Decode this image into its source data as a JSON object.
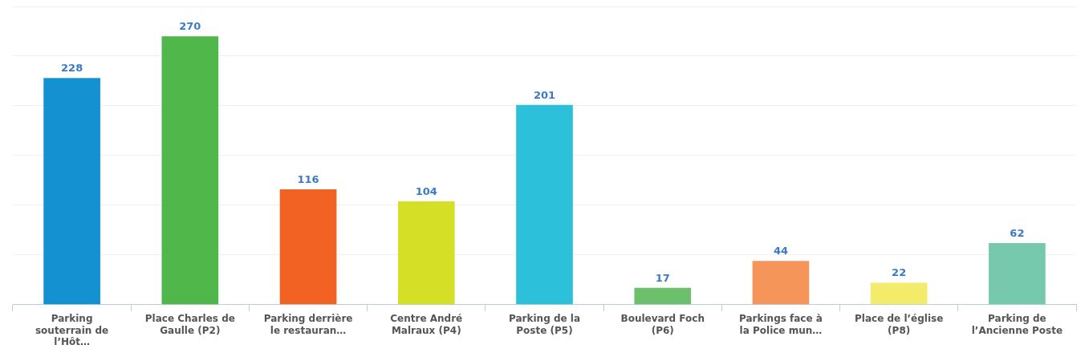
{
  "chart_data": {
    "type": "bar",
    "categories": [
      "Parking\nsouterrain de\nl’Hôt…",
      "Place Charles de\nGaulle (P2)",
      "Parking derrière\nle restauran…",
      "Centre André\nMalraux (P4)",
      "Parking de la\nPoste (P5)",
      "Boulevard Foch\n(P6)",
      "Parkings face à\nla Police mun…",
      "Place de l’église\n(P8)",
      "Parking de\nl’Ancienne Poste"
    ],
    "values": [
      228,
      270,
      116,
      104,
      201,
      17,
      44,
      22,
      62
    ],
    "colors": [
      "#1491d0",
      "#50b84a",
      "#f26222",
      "#d4df26",
      "#2cc0da",
      "#6cc06c",
      "#f6955a",
      "#f3ec6a",
      "#77c9ae"
    ],
    "ylim": [
      0,
      300
    ],
    "yticks": [
      {
        "value": 0,
        "label": null
      },
      {
        "value": 50,
        "label": null
      },
      {
        "value": 100,
        "label": null
      },
      {
        "value": 150,
        "label": null
      },
      {
        "value": 200,
        "label": null
      },
      {
        "value": 250,
        "label": null
      },
      {
        "value": 300,
        "label": null
      }
    ],
    "tick_labels": "x",
    "grid": "y",
    "data_labels": true
  }
}
